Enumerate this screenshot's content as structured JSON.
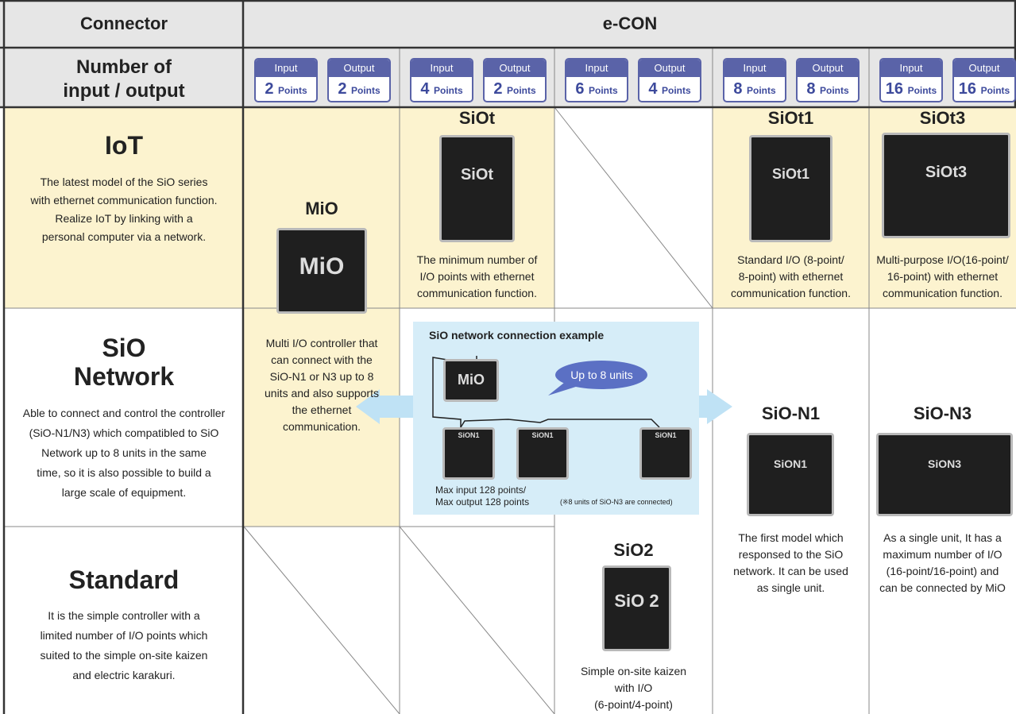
{
  "header": {
    "connector_label": "Connector",
    "connector_value": "e-CON",
    "io_label": [
      "Number of",
      "input / output"
    ]
  },
  "io_columns": [
    {
      "input_label": "Input",
      "input_points": 2,
      "output_label": "Output",
      "output_points": 2,
      "unit": "Points"
    },
    {
      "input_label": "Input",
      "input_points": 4,
      "output_label": "Output",
      "output_points": 2,
      "unit": "Points"
    },
    {
      "input_label": "Input",
      "input_points": 6,
      "output_label": "Output",
      "output_points": 4,
      "unit": "Points"
    },
    {
      "input_label": "Input",
      "input_points": 8,
      "output_label": "Output",
      "output_points": 8,
      "unit": "Points"
    },
    {
      "input_label": "Input",
      "input_points": 16,
      "output_label": "Output",
      "output_points": 16,
      "unit": "Points"
    }
  ],
  "rows": [
    {
      "title": [
        "IoT"
      ],
      "description": [
        "The latest model of the SiO series",
        "with ethernet communication function.",
        "Realize IoT by linking with a",
        "personal computer via a network."
      ]
    },
    {
      "title": [
        "SiO",
        "Network"
      ],
      "description": [
        "Able to connect and control the controller",
        "(SiO-N1/N3) which compatibled to SiO",
        "Network up to 8  units in the same",
        "time, so it is also possible to build a",
        "large scale of equipment."
      ]
    },
    {
      "title": [
        "Standard"
      ],
      "description": [
        "It is the simple controller with a",
        "limited number of I/O points which",
        "suited to the simple on-site kaizen",
        "and electric karakuri."
      ]
    }
  ],
  "products": [
    {
      "name": "MiO",
      "device_label": "MiO",
      "description": [
        "Multi I/O controller that",
        "can connect with the",
        "SiO-N1 or N3 up to 8",
        "units and also supports",
        "the ethernet",
        "communication."
      ]
    },
    {
      "name": "SiOt",
      "device_label": "SiOt",
      "description": [
        "The minimum number of",
        "I/O points with ethernet",
        "communication function."
      ]
    },
    {
      "name": "SiOt1",
      "device_label": "SiOt1",
      "description": [
        "Standard I/O (8-point/",
        "8-point) with ethernet",
        "communication function."
      ]
    },
    {
      "name": "SiOt3",
      "device_label": "SiOt3",
      "description": [
        "Multi-purpose I/O(16-point/",
        "16-point) with ethernet",
        "communication function."
      ]
    },
    {
      "name": "SiO-N1",
      "device_label": "SiON1",
      "description": [
        "The first model which",
        "responsed to the SiO",
        "network. It can be used",
        "as single unit."
      ]
    },
    {
      "name": "SiO-N3",
      "device_label": "SiON3",
      "description": [
        "As a single unit, It has a",
        "maximum number of I/O",
        "(16-point/16-point) and",
        "can be connected by MiO"
      ]
    },
    {
      "name": "SiO2",
      "device_label": "SiO 2",
      "description": [
        "Simple on-site kaizen",
        "with I/O",
        "(6-point/4-point)"
      ]
    }
  ],
  "network_example": {
    "title": "SiO network connection example",
    "callout": "Up to 8 units",
    "controller_label": "MiO",
    "node_label": "SiON1",
    "caption": [
      "Max input 128 points/",
      "Max output 128 points"
    ],
    "note": "(※8 units of SiO-N3 are connected)"
  }
}
